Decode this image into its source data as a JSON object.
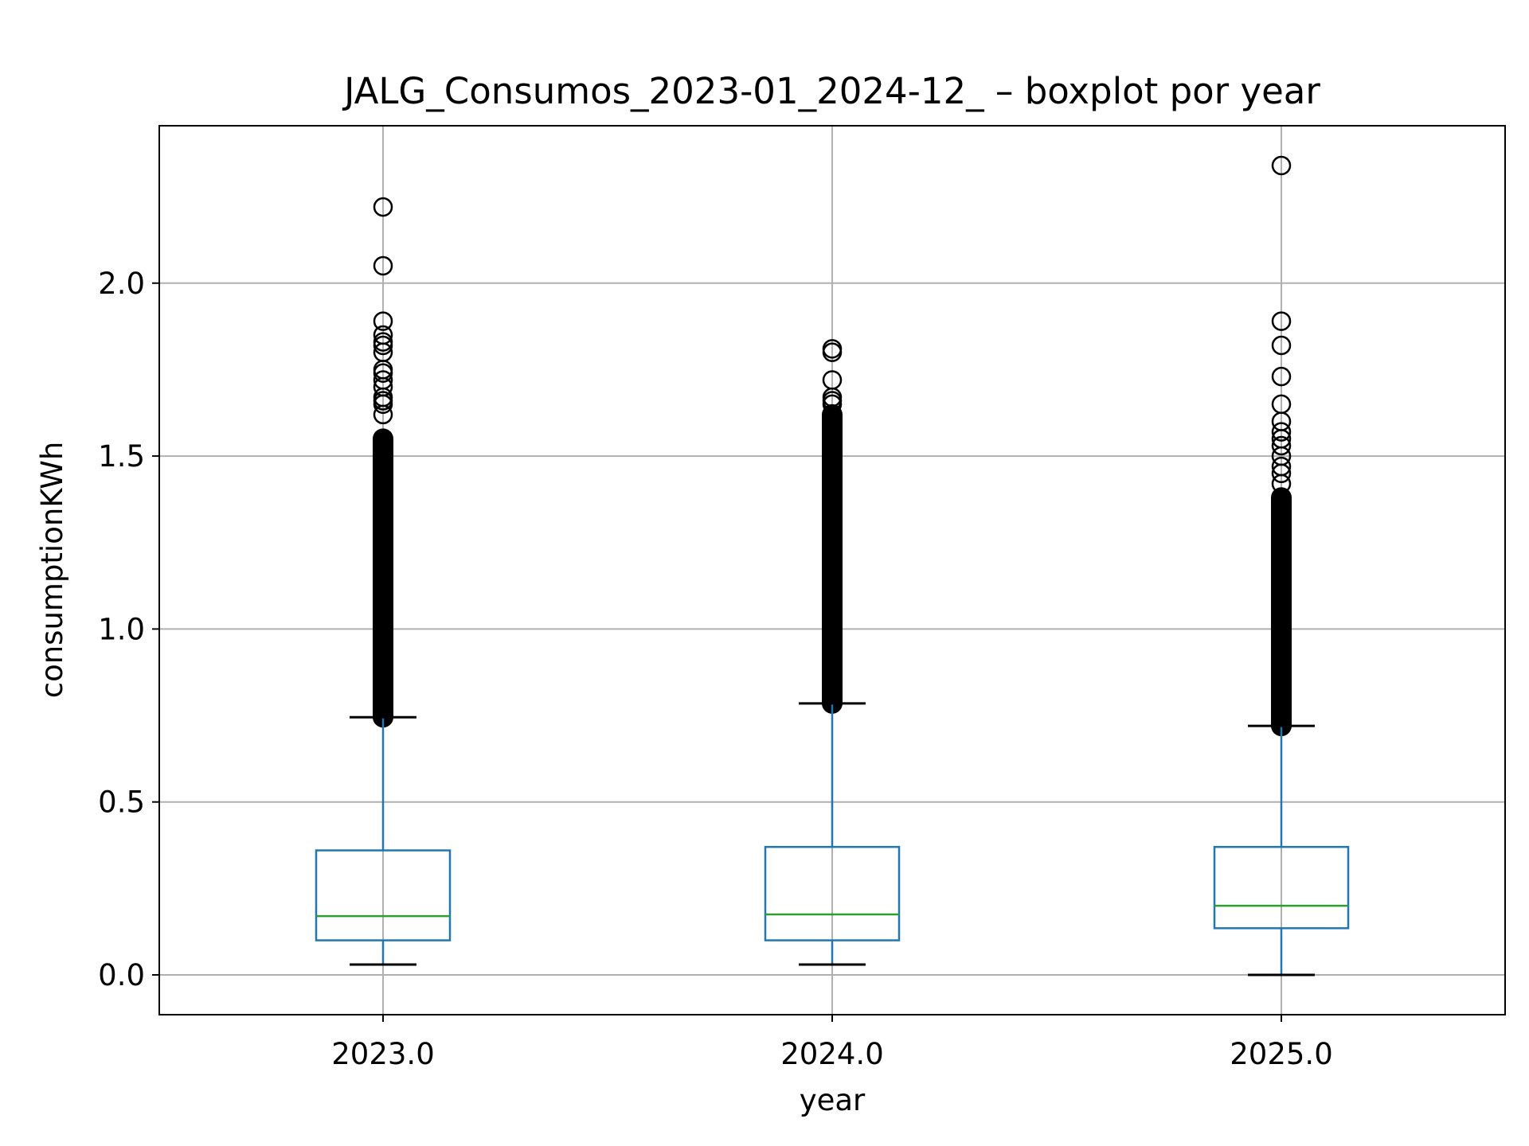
{
  "chart_data": {
    "type": "boxplot",
    "title": "JALG_Consumos_2023-01_2024-12_ – boxplot por year",
    "xlabel": "year",
    "ylabel": "consumptionKWh",
    "categories": [
      "2023.0",
      "2024.0",
      "2025.0"
    ],
    "y_ticks": [
      0.0,
      0.5,
      1.0,
      1.5,
      2.0
    ],
    "y_tick_labels": [
      "0.0",
      "0.5",
      "1.0",
      "1.5",
      "2.0"
    ],
    "ylim": [
      -0.115,
      2.455
    ],
    "grid": true,
    "colors": {
      "box": "#1f77b4",
      "median": "#2ca02c",
      "caps": "#000000",
      "fliers": "#000000",
      "grid": "#b0b0b0"
    },
    "boxes": [
      {
        "category": "2023.0",
        "whisker_low": 0.03,
        "q1": 0.1,
        "median": 0.17,
        "q3": 0.36,
        "whisker_high": 0.745,
        "outlier_max": 1.55,
        "outliers": [
          1.62,
          1.65,
          1.66,
          1.67,
          1.7,
          1.72,
          1.74,
          1.75,
          1.8,
          1.82,
          1.83,
          1.85,
          1.89,
          2.05,
          2.22
        ]
      },
      {
        "category": "2024.0",
        "whisker_low": 0.03,
        "q1": 0.1,
        "median": 0.175,
        "q3": 0.37,
        "whisker_high": 0.785,
        "outlier_max": 1.62,
        "outliers": [
          1.65,
          1.66,
          1.67,
          1.72,
          1.8,
          1.81
        ]
      },
      {
        "category": "2025.0",
        "whisker_low": 0.0,
        "q1": 0.135,
        "median": 0.2,
        "q3": 0.37,
        "whisker_high": 0.72,
        "outlier_max": 1.38,
        "outliers": [
          1.42,
          1.45,
          1.47,
          1.5,
          1.53,
          1.55,
          1.57,
          1.6,
          1.65,
          1.73,
          1.82,
          1.89,
          2.34
        ]
      }
    ]
  }
}
